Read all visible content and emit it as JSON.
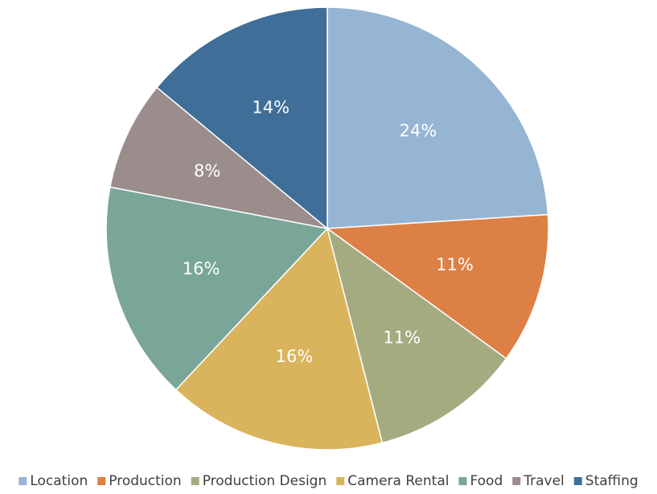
{
  "chart_data": {
    "type": "pie",
    "categories": [
      "Location",
      "Production",
      "Production Design",
      "Camera Rental",
      "Food",
      "Travel",
      "Staffing"
    ],
    "values": [
      24,
      11,
      11,
      16,
      16,
      8,
      14
    ],
    "value_labels": [
      "24%",
      "11%",
      "11%",
      "16%",
      "16%",
      "8%",
      "14%"
    ],
    "colors": [
      "#95b5d3",
      "#dd8046",
      "#a4ab80",
      "#d9b45d",
      "#7aa69a",
      "#9a8d8b",
      "#3f6f98"
    ],
    "legend": "bottom"
  }
}
